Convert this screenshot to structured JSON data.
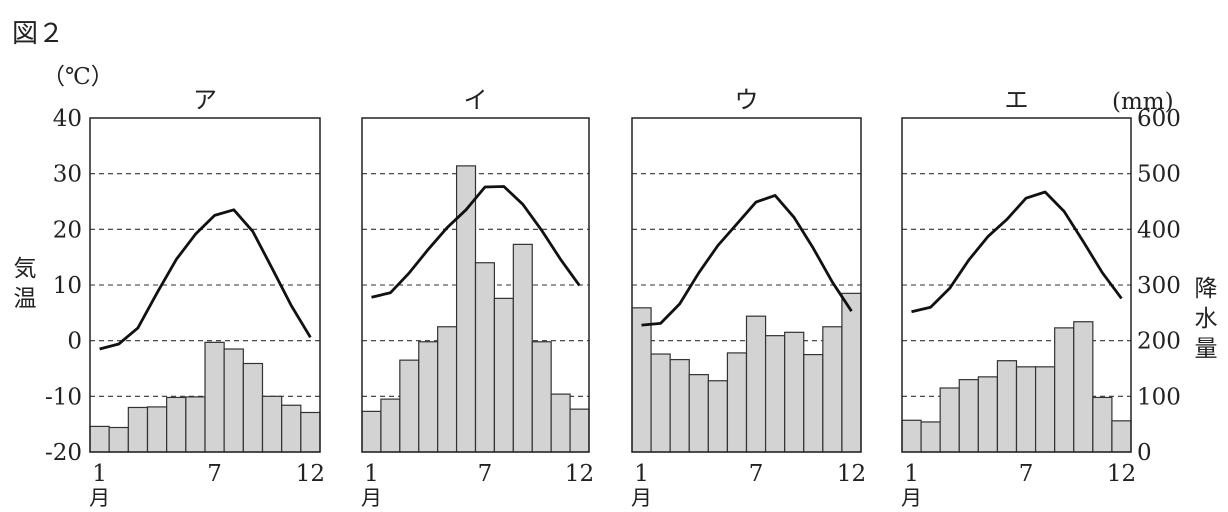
{
  "figure": {
    "label": "図２",
    "left_unit": "（℃）",
    "right_unit": "(mm)",
    "left_axis_label": "気温",
    "right_axis_label": "降水量",
    "month_suffix": "月"
  },
  "chart_data": [
    {
      "type": "bar+line",
      "title": "ア",
      "categories": [
        1,
        2,
        3,
        4,
        5,
        6,
        7,
        8,
        9,
        10,
        11,
        12
      ],
      "x_tick_labels": [
        "1",
        "7",
        "12"
      ],
      "temperature_c": [
        -1.5,
        -0.6,
        2.3,
        8.6,
        14.6,
        19.1,
        22.5,
        23.5,
        19.6,
        13.0,
        6.3,
        0.6
      ],
      "precipitation_mm": [
        46,
        44,
        80,
        81,
        98,
        99,
        197,
        185,
        159,
        100,
        84,
        71
      ],
      "ylim_temp": [
        -20,
        40
      ],
      "ylim_precip": [
        0,
        600
      ],
      "y_ticks_left": [
        40,
        30,
        20,
        10,
        0,
        -10,
        -20
      ],
      "y_ticks_right": [],
      "grid": "dashed horizontal"
    },
    {
      "type": "bar+line",
      "title": "イ",
      "categories": [
        1,
        2,
        3,
        4,
        5,
        6,
        7,
        8,
        9,
        10,
        11,
        12
      ],
      "x_tick_labels": [
        "1",
        "7",
        "12"
      ],
      "temperature_c": [
        7.8,
        8.6,
        12.2,
        16.4,
        20.3,
        23.5,
        27.6,
        27.7,
        24.5,
        19.8,
        14.6,
        9.9
      ],
      "precipitation_mm": [
        73,
        95,
        165,
        198,
        225,
        514,
        340,
        276,
        373,
        198,
        104,
        77
      ],
      "ylim_temp": [
        -20,
        40
      ],
      "ylim_precip": [
        0,
        600
      ],
      "y_ticks_left": [],
      "y_ticks_right": [],
      "grid": "dashed horizontal"
    },
    {
      "type": "bar+line",
      "title": "ウ",
      "categories": [
        1,
        2,
        3,
        4,
        5,
        6,
        7,
        8,
        9,
        10,
        11,
        12
      ],
      "x_tick_labels": [
        "1",
        "7",
        "12"
      ],
      "temperature_c": [
        2.8,
        3.1,
        6.6,
        12.2,
        17.1,
        21.0,
        24.9,
        26.1,
        22.1,
        16.6,
        10.5,
        5.3
      ],
      "precipitation_mm": [
        259,
        176,
        166,
        139,
        128,
        178,
        244,
        209,
        215,
        175,
        225,
        285
      ],
      "ylim_temp": [
        -20,
        40
      ],
      "ylim_precip": [
        0,
        600
      ],
      "y_ticks_left": [],
      "y_ticks_right": [],
      "grid": "dashed horizontal"
    },
    {
      "type": "bar+line",
      "title": "エ",
      "categories": [
        1,
        2,
        3,
        4,
        5,
        6,
        7,
        8,
        9,
        10,
        11,
        12
      ],
      "x_tick_labels": [
        "1",
        "7",
        "12"
      ],
      "temperature_c": [
        5.2,
        6.0,
        9.4,
        14.5,
        18.7,
        21.8,
        25.6,
        26.7,
        23.2,
        17.8,
        12.2,
        7.6
      ],
      "precipitation_mm": [
        57,
        54,
        115,
        130,
        135,
        164,
        153,
        153,
        223,
        234,
        98,
        56
      ],
      "ylim_temp": [
        -20,
        40
      ],
      "ylim_precip": [
        0,
        600
      ],
      "y_ticks_left": [],
      "y_ticks_right": [
        600,
        500,
        400,
        300,
        200,
        100,
        0
      ],
      "grid": "dashed horizontal"
    }
  ]
}
